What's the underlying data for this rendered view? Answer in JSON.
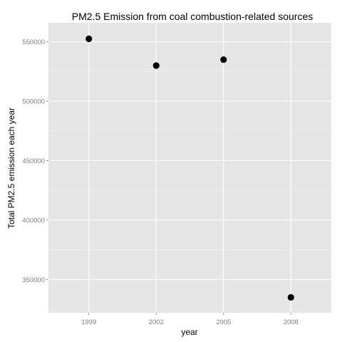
{
  "chart_data": {
    "type": "scatter",
    "title": "PM2.5 Emission from coal combustion-related sources",
    "xlabel": "year",
    "ylabel": "Total PM2.5 emission each year",
    "x": [
      "1999",
      "2002",
      "2005",
      "2008"
    ],
    "series": [
      {
        "values": [
          552500,
          530000,
          535000,
          335000
        ]
      }
    ],
    "y_ticks": [
      350000,
      400000,
      450000,
      500000,
      550000
    ],
    "y_tick_labels": [
      "350000",
      "400000",
      "450000",
      "500000",
      "550000"
    ],
    "ylim": [
      322000,
      566000
    ],
    "grid": true,
    "colors": {
      "panel_background": "#e5e5e5",
      "grid_major": "#ffffff",
      "grid_minor": "#f2f2f2",
      "point": "#000000",
      "tick_label": "#7f7f7f"
    }
  }
}
